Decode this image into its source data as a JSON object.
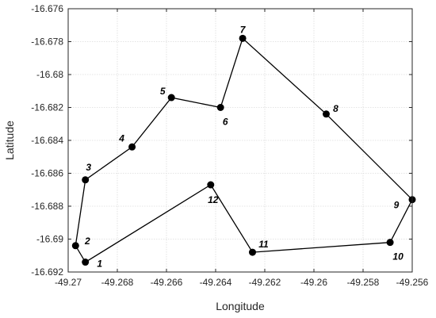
{
  "chart_data": {
    "type": "line",
    "title": "",
    "xlabel": "Longitude",
    "ylabel": "Latitude",
    "xlim": [
      -49.27,
      -49.256
    ],
    "ylim": [
      -16.692,
      -16.676
    ],
    "grid": true,
    "x_ticks": [
      "-49.27",
      "-49.268",
      "-49.266",
      "-49.264",
      "-49.262",
      "-49.26",
      "-49.258",
      "-49.256"
    ],
    "y_ticks": [
      "-16.676",
      "-16.678",
      "-16.68",
      "-16.682",
      "-16.684",
      "-16.686",
      "-16.688",
      "-16.69",
      "-16.692"
    ],
    "route_closed": true,
    "points": [
      {
        "label": "1",
        "x": -49.2693,
        "y": -16.6914
      },
      {
        "label": "2",
        "x": -49.2697,
        "y": -16.6904
      },
      {
        "label": "3",
        "x": -49.2693,
        "y": -16.6864
      },
      {
        "label": "4",
        "x": -49.2674,
        "y": -16.6844
      },
      {
        "label": "5",
        "x": -49.2658,
        "y": -16.6814
      },
      {
        "label": "6",
        "x": -49.2638,
        "y": -16.682
      },
      {
        "label": "7",
        "x": -49.2629,
        "y": -16.6778
      },
      {
        "label": "8",
        "x": -49.2595,
        "y": -16.6824
      },
      {
        "label": "9",
        "x": -49.256,
        "y": -16.6876
      },
      {
        "label": "10",
        "x": -49.2569,
        "y": -16.6902
      },
      {
        "label": "11",
        "x": -49.2625,
        "y": -16.6908
      },
      {
        "label": "12",
        "x": -49.2642,
        "y": -16.6867
      }
    ]
  }
}
